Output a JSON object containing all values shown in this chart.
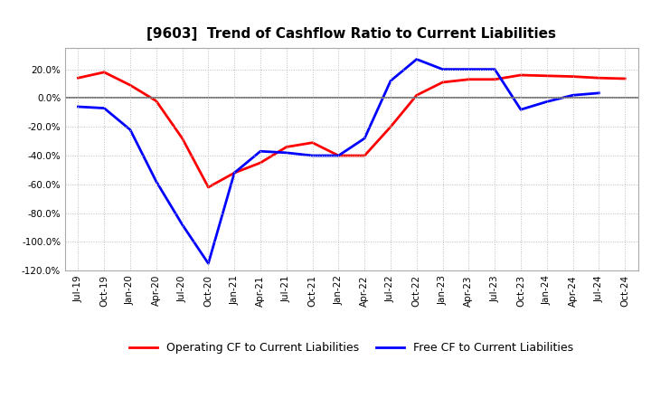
{
  "title": "[9603]  Trend of Cashflow Ratio to Current Liabilities",
  "x_labels": [
    "Jul-19",
    "Oct-19",
    "Jan-20",
    "Apr-20",
    "Jul-20",
    "Oct-20",
    "Jan-21",
    "Apr-21",
    "Jul-21",
    "Oct-21",
    "Jan-22",
    "Apr-22",
    "Jul-22",
    "Oct-22",
    "Jan-23",
    "Apr-23",
    "Jul-23",
    "Oct-23",
    "Jan-24",
    "Apr-24",
    "Jul-24",
    "Oct-24"
  ],
  "operating_cf": [
    14.0,
    18.0,
    9.0,
    -2.0,
    -28.0,
    -62.0,
    -52.0,
    -45.0,
    -34.0,
    -31.0,
    -40.0,
    -40.0,
    -20.0,
    2.0,
    11.0,
    13.0,
    13.0,
    16.0,
    15.5,
    15.0,
    14.0,
    13.5
  ],
  "free_cf": [
    -6.0,
    -7.0,
    -22.0,
    -58.0,
    -88.0,
    -115.0,
    -52.0,
    -37.0,
    -38.0,
    -40.0,
    -40.0,
    -28.0,
    12.0,
    27.0,
    20.0,
    20.0,
    20.0,
    -8.0,
    -2.5,
    2.0,
    3.5,
    null
  ],
  "operating_color": "#FF0000",
  "free_color": "#0000FF",
  "ylim_min": -120.0,
  "ylim_max": 30.0,
  "yticks": [
    20.0,
    0.0,
    -20.0,
    -40.0,
    -60.0,
    -80.0,
    -100.0,
    -120.0
  ],
  "background_color": "#FFFFFF",
  "grid_color": "#BBBBBB",
  "legend_operating": "Operating CF to Current Liabilities",
  "legend_free": "Free CF to Current Liabilities",
  "title_fontsize": 11,
  "tick_fontsize": 7.5,
  "legend_fontsize": 9
}
